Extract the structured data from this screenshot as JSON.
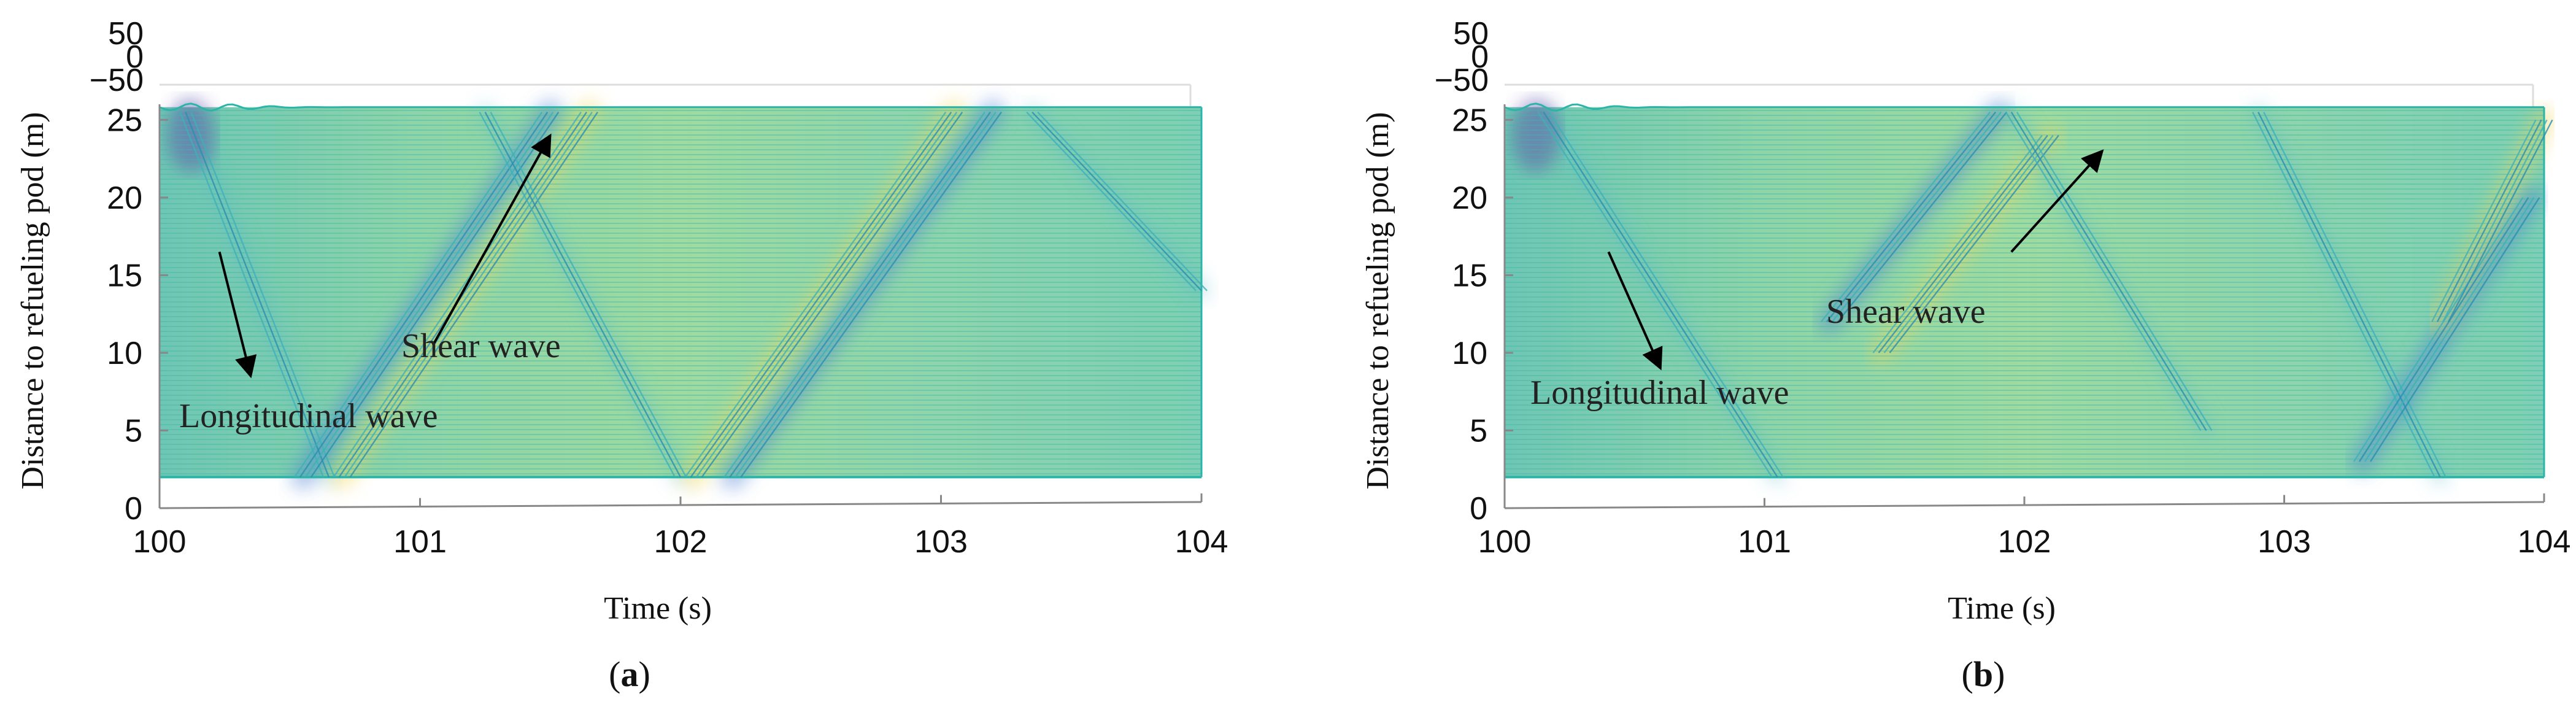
{
  "chart_data": [
    {
      "type": "waterfall-3d",
      "panel_label": "a",
      "xlabel": "Time (s)",
      "ylabel": "Distance to refueling pod (m)",
      "xlim": [
        100,
        104
      ],
      "ylim": [
        0,
        26
      ],
      "xticks": [
        "100",
        "101",
        "102",
        "103",
        "104"
      ],
      "yticks": [
        "0",
        "5",
        "10",
        "15",
        "20",
        "25"
      ],
      "zticks": [
        "50",
        "0",
        "−50"
      ],
      "palette": {
        "base": "#7fcfb0",
        "line": "#2bb5a8",
        "warm": "#f2d65c",
        "hot": "#f4a460",
        "cool": "#4a7fd4",
        "deep": "#5b3fa8"
      },
      "wavefronts": [
        {
          "name": "longitudinal-down-1",
          "x": [
            100.1,
            100.65
          ],
          "y": [
            25.5,
            2
          ]
        },
        {
          "name": "shear-up-1",
          "x": [
            100.55,
            101.5
          ],
          "y": [
            2,
            25.5
          ]
        },
        {
          "name": "shear-up-2",
          "x": [
            100.7,
            101.65
          ],
          "y": [
            2,
            25.5
          ]
        },
        {
          "name": "longitudinal-down-2",
          "x": [
            101.25,
            102.0
          ],
          "y": [
            25.5,
            2
          ]
        },
        {
          "name": "shear-up-3",
          "x": [
            102.05,
            103.05
          ],
          "y": [
            2,
            25.5
          ]
        },
        {
          "name": "shear-up-4",
          "x": [
            102.2,
            103.2
          ],
          "y": [
            2,
            25.5
          ]
        },
        {
          "name": "longitudinal-down-3",
          "x": [
            103.35,
            104.0
          ],
          "y": [
            25.5,
            14
          ]
        }
      ],
      "annotations": [
        {
          "text": "Shear wave",
          "arrow": {
            "from": [
              101.05,
              10.5
            ],
            "to": [
              101.5,
              24
            ]
          }
        },
        {
          "text": "Longitudinal wave",
          "arrow": {
            "from": [
              100.23,
              16.5
            ],
            "to": [
              100.35,
              8.5
            ]
          }
        }
      ]
    },
    {
      "type": "waterfall-3d",
      "panel_label": "b",
      "xlabel": "Time (s)",
      "ylabel": "Distance to refueling pod (m)",
      "xlim": [
        100,
        104
      ],
      "ylim": [
        0,
        26
      ],
      "xticks": [
        "100",
        "101",
        "102",
        "103",
        "104"
      ],
      "yticks": [
        "0",
        "5",
        "10",
        "15",
        "20",
        "25"
      ],
      "zticks": [
        "50",
        "0",
        "−50"
      ],
      "palette": {
        "base": "#7fcfb0",
        "line": "#2bb5a8",
        "warm": "#f2d65c",
        "hot": "#f4a460",
        "cool": "#4a7fd4",
        "deep": "#5b3fa8"
      },
      "wavefronts": [
        {
          "name": "longitudinal-down-1",
          "x": [
            100.15,
            101.05
          ],
          "y": [
            25.5,
            2
          ]
        },
        {
          "name": "shear-up-1",
          "x": [
            101.25,
            101.9
          ],
          "y": [
            12,
            25.5
          ]
        },
        {
          "name": "shear-up-2",
          "x": [
            101.45,
            102.1
          ],
          "y": [
            10,
            24
          ]
        },
        {
          "name": "longitudinal-down-2",
          "x": [
            101.95,
            102.7
          ],
          "y": [
            25.5,
            5
          ]
        },
        {
          "name": "longitudinal-down-3",
          "x": [
            102.9,
            103.6
          ],
          "y": [
            25.5,
            2
          ]
        },
        {
          "name": "shear-up-3",
          "x": [
            103.3,
            103.95
          ],
          "y": [
            3,
            20
          ]
        },
        {
          "name": "shear-up-4",
          "x": [
            103.6,
            104.0
          ],
          "y": [
            12,
            25
          ]
        }
      ],
      "annotations": [
        {
          "text": "Shear wave",
          "arrow": {
            "from": [
              101.95,
              16.5
            ],
            "to": [
              102.3,
              23
            ]
          }
        },
        {
          "text": "Longitudinal wave",
          "arrow": {
            "from": [
              100.4,
              16.5
            ],
            "to": [
              100.6,
              9
            ]
          }
        }
      ]
    }
  ]
}
